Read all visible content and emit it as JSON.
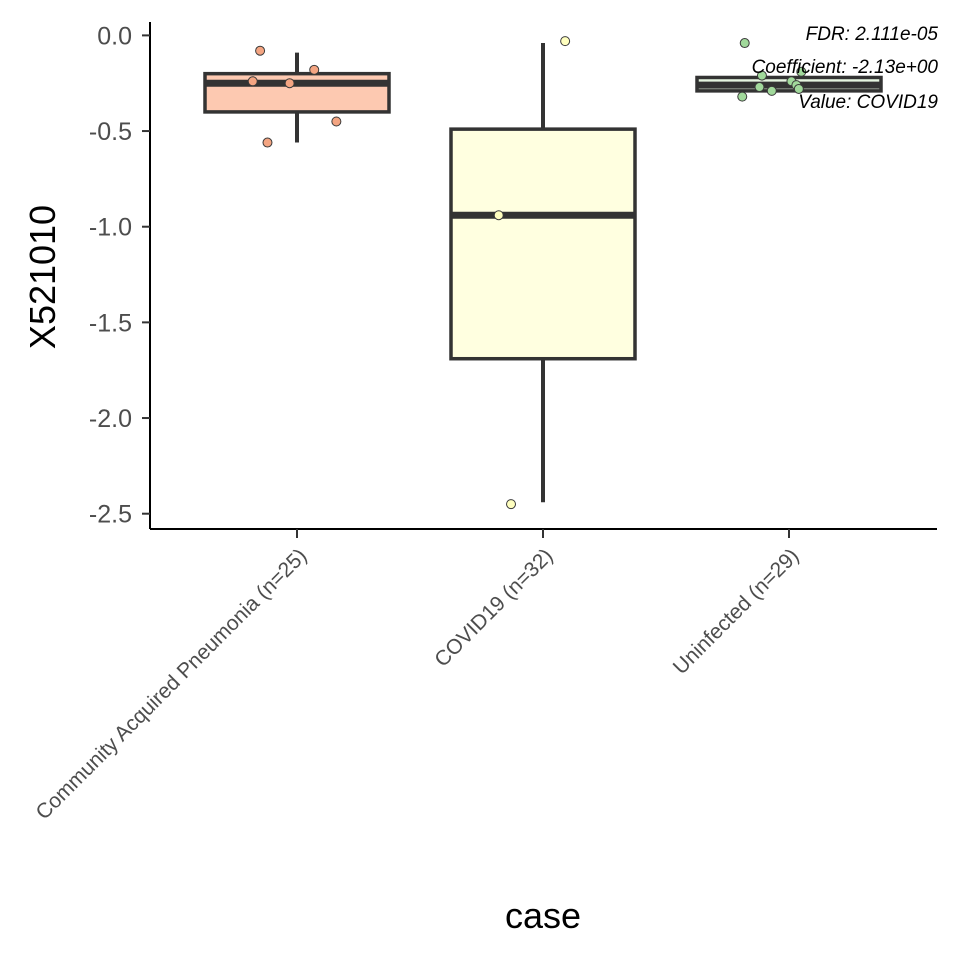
{
  "chart_data": {
    "type": "box",
    "xlabel": "case",
    "ylabel": "X521010",
    "ylim": [
      -2.58,
      0.07
    ],
    "yticks": [
      0.0,
      -0.5,
      -1.0,
      -1.5,
      -2.0,
      -2.5
    ],
    "ytick_labels": [
      "0.0",
      "-0.5",
      "-1.0",
      "-1.5",
      "-2.0",
      "-2.5"
    ],
    "grid": false,
    "categories": [
      "Community Acquired Pneumonia (n=25)",
      "COVID19 (n=32)",
      "Uninfected (n=29)"
    ],
    "boxes": [
      {
        "category": "Community Acquired Pneumonia (n=25)",
        "fill": "#fdc9b1",
        "point_color": "#f4a582",
        "whisker_low": -0.56,
        "q1": -0.4,
        "median": -0.25,
        "q3": -0.2,
        "whisker_high": -0.09,
        "points": [
          {
            "x": -0.15,
            "y": -0.08
          },
          {
            "x": 0.07,
            "y": -0.18
          },
          {
            "x": -0.18,
            "y": -0.24
          },
          {
            "x": -0.03,
            "y": -0.25
          },
          {
            "x": 0.16,
            "y": -0.45
          },
          {
            "x": -0.12,
            "y": -0.56
          }
        ]
      },
      {
        "category": "COVID19 (n=32)",
        "fill": "#ffffe0",
        "point_color": "#ffffbf",
        "whisker_low": -2.44,
        "q1": -1.69,
        "median": -0.94,
        "q3": -0.49,
        "whisker_high": -0.04,
        "points": [
          {
            "x": 0.09,
            "y": -0.03
          },
          {
            "x": -0.18,
            "y": -0.94
          },
          {
            "x": -0.13,
            "y": -2.45
          }
        ]
      },
      {
        "category": "Uninfected (n=29)",
        "fill": "#e5f5e0",
        "point_color": "#a1d99b",
        "whisker_low": -0.29,
        "q1": -0.29,
        "median": -0.26,
        "q3": -0.22,
        "whisker_high": -0.22,
        "points": [
          {
            "x": -0.18,
            "y": -0.04
          },
          {
            "x": -0.11,
            "y": -0.21
          },
          {
            "x": 0.05,
            "y": -0.19
          },
          {
            "x": -0.12,
            "y": -0.27
          },
          {
            "x": -0.07,
            "y": -0.29
          },
          {
            "x": 0.01,
            "y": -0.24
          },
          {
            "x": 0.03,
            "y": -0.26
          },
          {
            "x": 0.04,
            "y": -0.28
          },
          {
            "x": -0.19,
            "y": -0.32
          }
        ]
      }
    ],
    "annotations": [
      "FDR: 2.111e-05",
      "Coefficient: -2.13e+00",
      "Value: COVID19"
    ],
    "colors": {
      "box_stroke": "#333333",
      "axis": "#000000",
      "tick_text": "#4d4d4d"
    }
  }
}
